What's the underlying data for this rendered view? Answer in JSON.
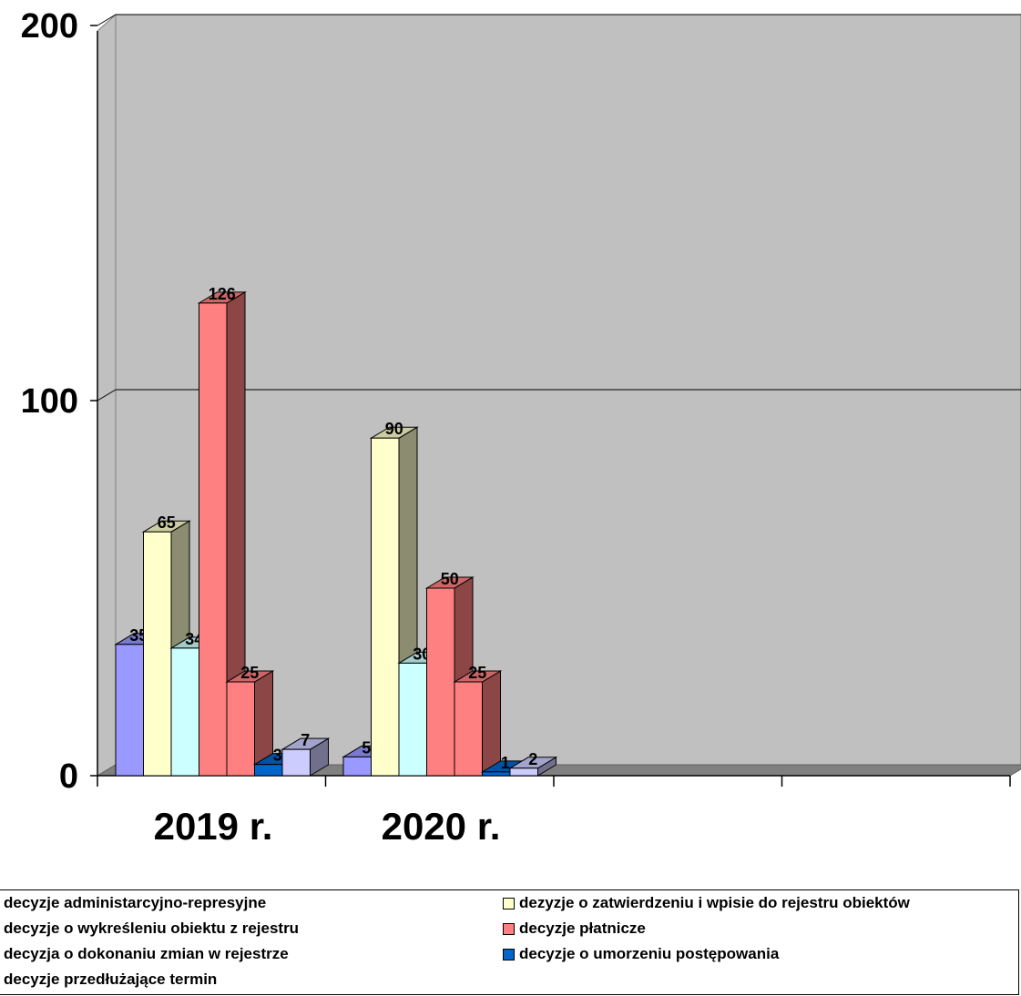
{
  "chart_data": {
    "type": "bar",
    "categories": [
      "2019 r.",
      "2020 r."
    ],
    "ylim": [
      0,
      200
    ],
    "yticks": [
      "0",
      "100",
      "200"
    ],
    "grid": true,
    "legend_position": "bottom",
    "series": [
      {
        "name": "decyzje administarcyjno-represyjne",
        "values": [
          35,
          5
        ],
        "color": "#9999ff"
      },
      {
        "name": "dezyzje o zatwierdzeniu i wpisie do rejestru obiektów",
        "values": [
          65,
          90
        ],
        "color": "#ffffcc"
      },
      {
        "name": "decyzje o wykreśleniu obiektu z rejestru",
        "values": [
          34,
          30
        ],
        "color": "#ccffff"
      },
      {
        "name": "decyzje płatnicze",
        "values": [
          126,
          50
        ],
        "color": "#ff8080"
      },
      {
        "name": "decyzja o dokonaniu zmian  w rejestrze",
        "values": [
          25,
          25
        ],
        "color": "#ff8080"
      },
      {
        "name": "decyzje o umorzeniu postępowania",
        "values": [
          3,
          1
        ],
        "color": "#0066cc"
      },
      {
        "name": "decyzje przedłużające termin",
        "values": [
          7,
          2
        ],
        "color": "#ccccff"
      }
    ],
    "data_labels": [
      [
        "35",
        "65",
        "34",
        "126",
        "25",
        "3",
        "7"
      ],
      [
        "5",
        "90",
        "30",
        "50",
        "25",
        "1",
        "2"
      ]
    ]
  }
}
